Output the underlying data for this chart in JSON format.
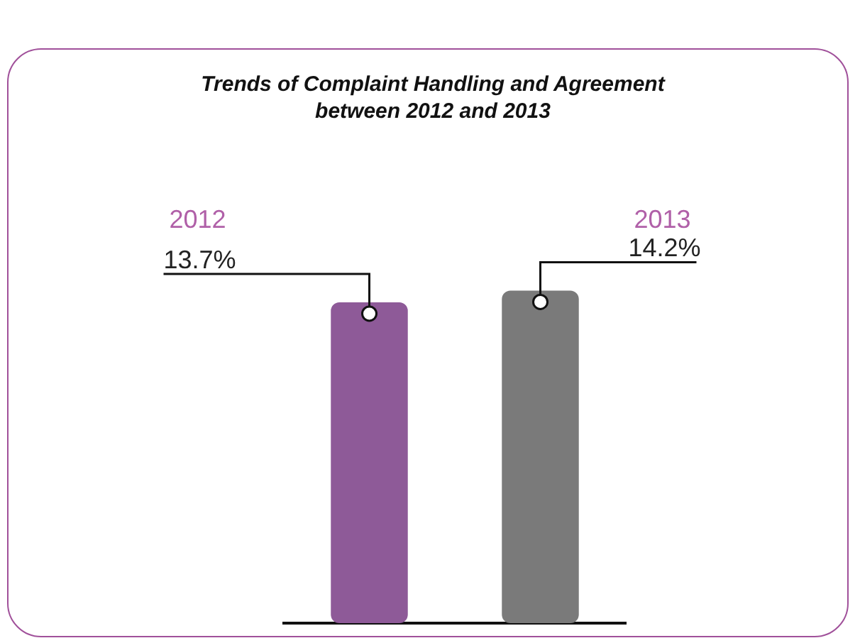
{
  "chart_data": {
    "type": "bar",
    "title": "Trends of Complaint Handling and Agreement between 2012 and 2013",
    "categories": [
      "2012",
      "2013"
    ],
    "values": [
      13.7,
      14.2
    ],
    "value_labels": [
      "13.7%",
      "14.2%"
    ],
    "colors": [
      "#8e5a98",
      "#7a7a7a"
    ],
    "legend": false,
    "grid": false
  }
}
